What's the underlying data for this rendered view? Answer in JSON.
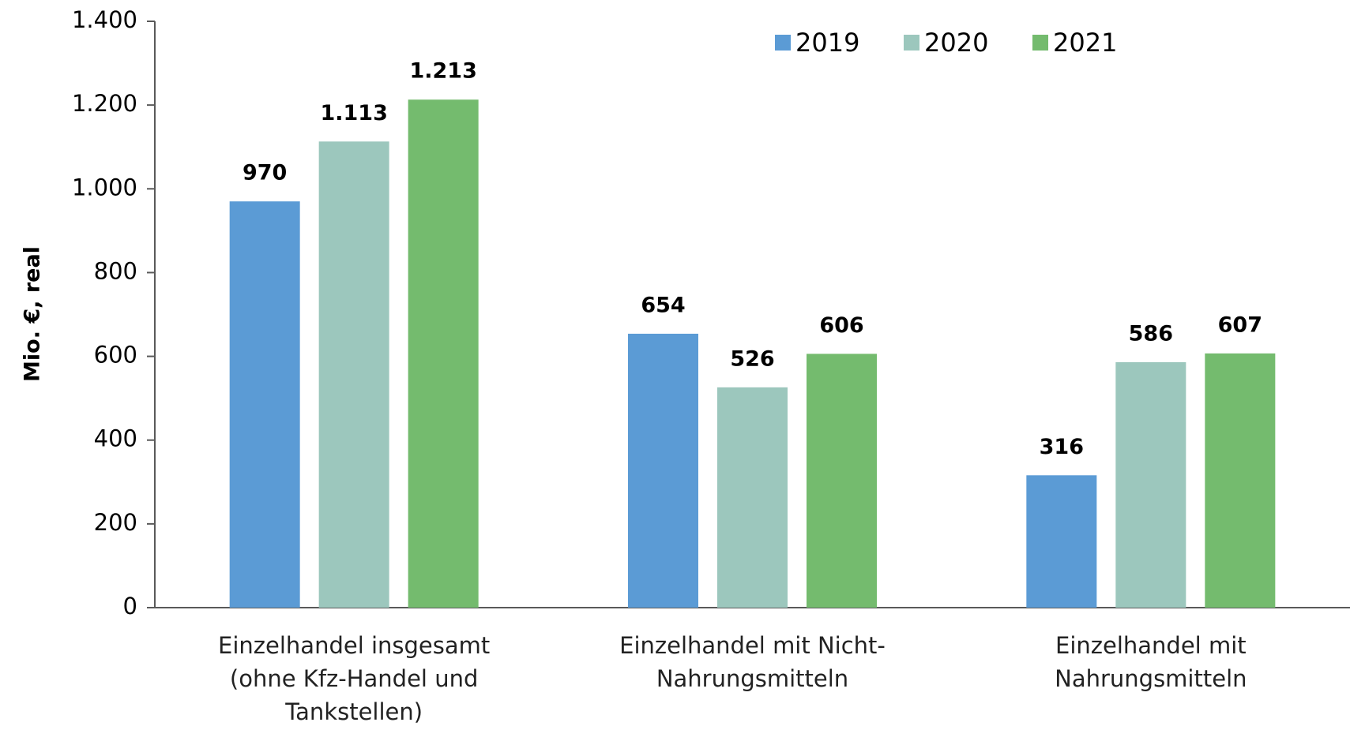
{
  "chart_data": {
    "type": "bar",
    "y_label": "Mio. €, real",
    "categories": [
      "Einzelhandel insgesamt\n(ohne Kfz-Handel und\nTankstellen)",
      "Einzelhandel mit Nicht-\nNahrungsmitteln",
      "Einzelhandel mit\nNahrungsmitteln"
    ],
    "series": [
      {
        "name": "2019",
        "color": "#5b9bd5",
        "label_color": "#000000",
        "values": [
          970,
          654,
          316
        ]
      },
      {
        "name": "2020",
        "color": "#9cc7bd",
        "label_color": "#000000",
        "values": [
          1113,
          526,
          586
        ],
        "value_labels": [
          "1.113",
          "526",
          "586"
        ]
      },
      {
        "name": "2021",
        "color": "#74bb6e",
        "label_color": "#ff0000",
        "values": [
          1213,
          606,
          607
        ],
        "value_labels": [
          "1.213",
          "606",
          "607"
        ]
      }
    ],
    "ylim": [
      0,
      1400
    ],
    "yticks": [
      0,
      200,
      400,
      600,
      800,
      {
        "value": 1000,
        "label": "1.000"
      },
      {
        "value": 1200,
        "label": "1.200"
      },
      {
        "value": 1400,
        "label": "1.400"
      }
    ],
    "grid": false,
    "legend": "top"
  }
}
